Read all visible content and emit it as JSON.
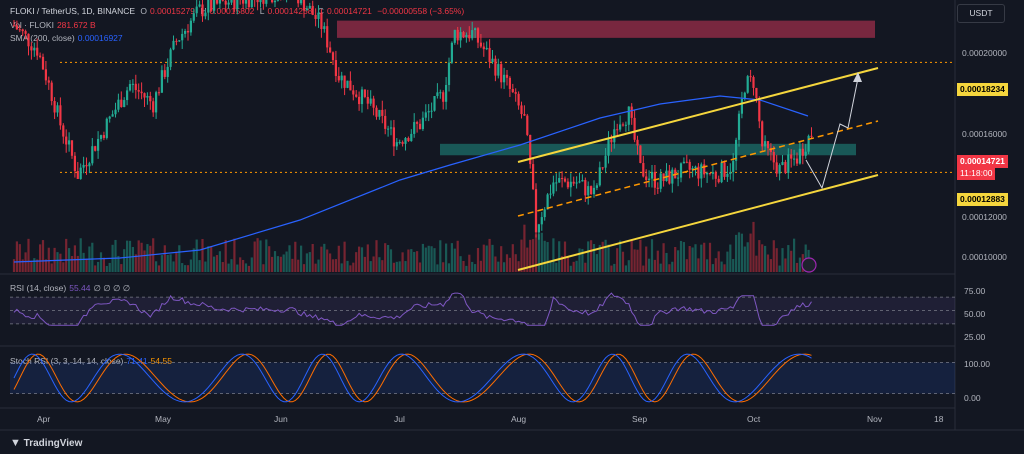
{
  "header": {
    "symbol": "FLOKI / TetherUS, 1D, BINANCE",
    "o_label": "O",
    "o_value": "0.00015279",
    "h_label": "H",
    "h_value": "0.00015802",
    "l_label": "L",
    "l_value": "0.00014258",
    "c_label": "C",
    "c_value": "0.00014721",
    "change": "−0.00000558 (−3.65%)"
  },
  "volume_legend": {
    "label": "Vol · FLOKI",
    "value": "281.672 B"
  },
  "sma_legend": {
    "label": "SMA (200, close)",
    "value": "0.00016927"
  },
  "rsi_legend": {
    "label": "RSI (14, close)",
    "value": "55.44",
    "extras": "∅ ∅ ∅ ∅"
  },
  "stoch_legend": {
    "label": "Stoch RSI (3, 3, 14, 14, close)",
    "k": "71.41",
    "d": "54.55"
  },
  "currency": "USDT",
  "price_axis": [
    "0.00020000",
    "0.00016000",
    "0.00012000",
    "0.00010000"
  ],
  "price_tags": {
    "resistance": "0.00018234",
    "current": "0.00014721",
    "countdown": "11:18:00",
    "support": "0.00012883"
  },
  "rsi_axis": [
    "75.00",
    "50.00",
    "25.00"
  ],
  "stoch_axis": [
    "100.00",
    "0.00"
  ],
  "time_axis": [
    "Apr",
    "May",
    "Jun",
    "Jul",
    "Aug",
    "Sep",
    "Oct",
    "Nov",
    "18"
  ],
  "brand": "TradingView",
  "colors": {
    "up": "#22ab94",
    "down": "#f23645",
    "sma": "#2962ff",
    "channel": "#f5d63d",
    "dashed": "#ff9800",
    "rsi": "#7e57c2",
    "stoch_k": "#2962ff",
    "stoch_d": "#ff6d00",
    "resistance_zone": "#8b2a44",
    "support_zone": "#1c6f6a"
  },
  "chart_data": {
    "type": "candlestick",
    "price_scale": "log",
    "ylim": [
      9.35e-05,
      0.000222
    ],
    "horizontal_levels": [
      0.00018234,
      0.00012883
    ],
    "resistance_zone": [
      0.000197,
      0.000208
    ],
    "support_zone": [
      0.000136,
      0.000141
    ],
    "rsi_bands": [
      70,
      50,
      30
    ],
    "stoch_bands": [
      80,
      20
    ]
  }
}
